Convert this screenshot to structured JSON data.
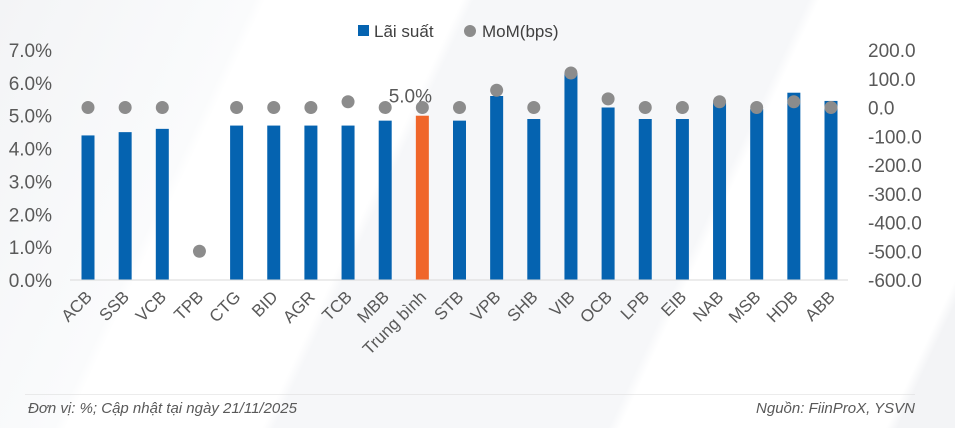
{
  "chart_data": {
    "type": "bar+scatter",
    "categories": [
      "ACB",
      "SSB",
      "VCB",
      "TPB",
      "CTG",
      "BID",
      "AGR",
      "TCB",
      "MBB",
      "Trung bình",
      "STB",
      "VPB",
      "SHB",
      "VIB",
      "OCB",
      "LPB",
      "EIB",
      "NAB",
      "MSB",
      "HDB",
      "ABB"
    ],
    "series": [
      {
        "name": "Lãi suất",
        "type": "bar",
        "axis": "left",
        "color": "#0563b0",
        "values": [
          4.4,
          4.5,
          4.6,
          null,
          4.7,
          4.7,
          4.7,
          4.7,
          4.85,
          5.0,
          4.85,
          5.6,
          4.9,
          6.3,
          5.25,
          4.9,
          4.9,
          5.4,
          5.2,
          5.7,
          5.45
        ]
      },
      {
        "name": "MoM(bps)",
        "type": "scatter",
        "axis": "right",
        "color": "#8c8c8c",
        "values": [
          0,
          0,
          0,
          -500,
          0,
          0,
          0,
          20,
          0,
          0,
          0,
          60,
          0,
          120,
          30,
          0,
          0,
          20,
          0,
          20,
          0
        ]
      }
    ],
    "highlight": {
      "category": "Trung bình",
      "color": "#f0662a",
      "label": "5.0%"
    },
    "y_left": {
      "range": [
        0,
        7
      ],
      "ticks": [
        "0.0%",
        "1.0%",
        "2.0%",
        "3.0%",
        "4.0%",
        "5.0%",
        "6.0%",
        "7.0%"
      ]
    },
    "y_right": {
      "range": [
        -600,
        200
      ],
      "ticks": [
        "-600.0",
        "-500.0",
        "-400.0",
        "-300.0",
        "-200.0",
        "-100.0",
        "0.0",
        "100.0",
        "200.0"
      ]
    },
    "legend": "top",
    "grid": false
  },
  "footer": {
    "note": "Đơn vị: %; Cập nhật tại ngày 21/11/2025",
    "source": "Nguồn: FiinProX, YSVN"
  }
}
